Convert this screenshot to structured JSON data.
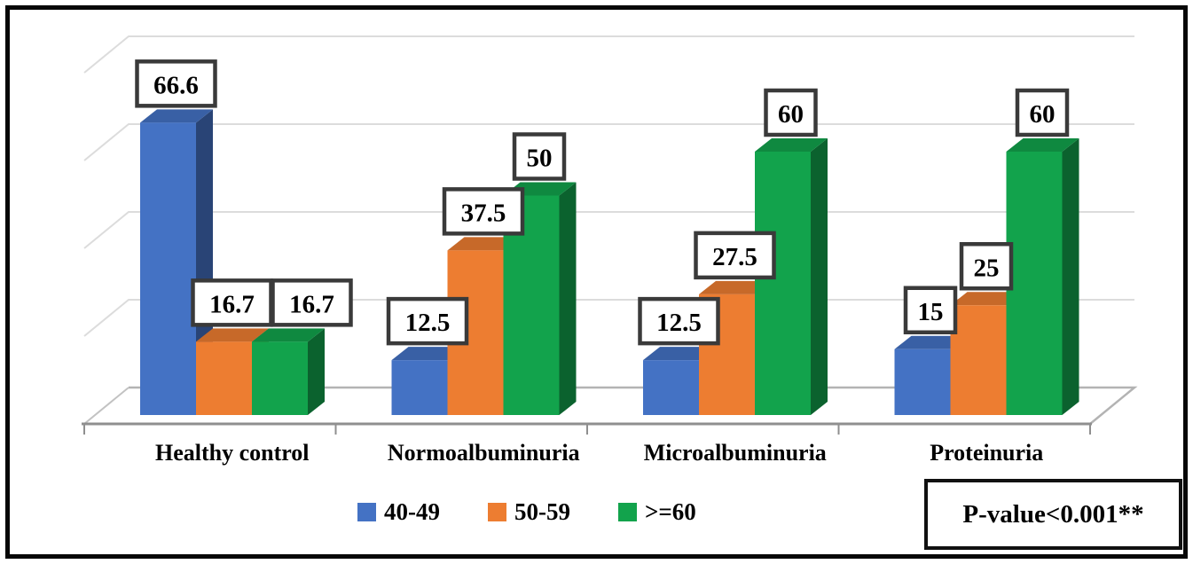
{
  "chart_data": {
    "type": "bar",
    "projection": "3d",
    "title": "",
    "categories": [
      "Healthy control",
      "Normoalbuminuria",
      "Microalbuminuria",
      "Proteinuria"
    ],
    "series": [
      {
        "name": "40-49",
        "color": "#4472C4",
        "values": [
          66.6,
          12.5,
          12.5,
          15
        ]
      },
      {
        "name": "50-59",
        "color": "#ED7D31",
        "values": [
          16.7,
          37.5,
          27.5,
          25
        ]
      },
      {
        "name": ">=60",
        "color": "#12A34C",
        "values": [
          16.7,
          50,
          60,
          60
        ]
      }
    ],
    "xlabel": "",
    "ylabel": "",
    "ylim": [
      0,
      80
    ],
    "gridline_step": 20,
    "grid": true,
    "data_labels_shown": true,
    "legend_position": "bottom",
    "annotation": "P-value<0.001**",
    "gridline_color": "#dcdcdc",
    "floor_color": "#8f8f8f",
    "label_box_border": "#3a3a3a"
  }
}
